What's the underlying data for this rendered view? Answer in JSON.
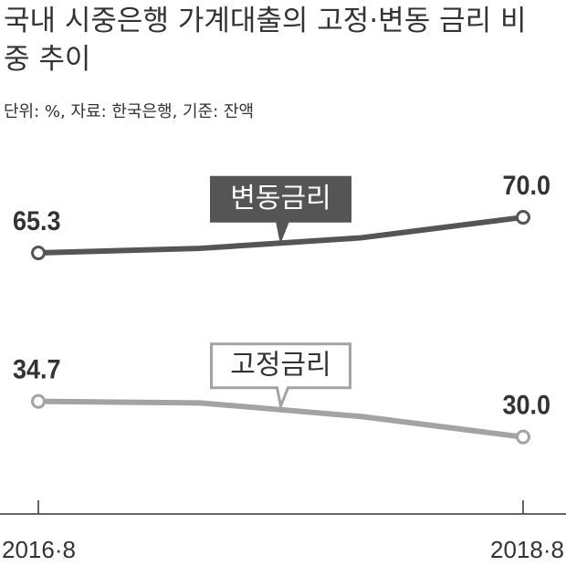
{
  "chart_data": {
    "type": "line",
    "title": "국내 시중은행 가계대출의 고정·변동 금리 비중 추이",
    "subtitle": "단위: %, 자료: 한국은행, 기준: 잔액",
    "categories": [
      "2016·8",
      null,
      null,
      "2018·8"
    ],
    "ylim": [
      31.2,
      78.2
    ],
    "y2lim": [
      20.2,
      67.2
    ],
    "series": [
      {
        "name": "변동금리",
        "color": "#555555",
        "values": [
          65.3,
          65.9,
          67.3,
          70.0
        ],
        "value_labels": [
          "65.3",
          null,
          null,
          "70.0"
        ]
      },
      {
        "name": "고정금리",
        "color": "#a3a3a3",
        "axis": "y2",
        "values": [
          34.7,
          34.5,
          32.7,
          30.0
        ],
        "value_labels": [
          "34.7",
          null,
          null,
          "30.0"
        ]
      }
    ]
  }
}
